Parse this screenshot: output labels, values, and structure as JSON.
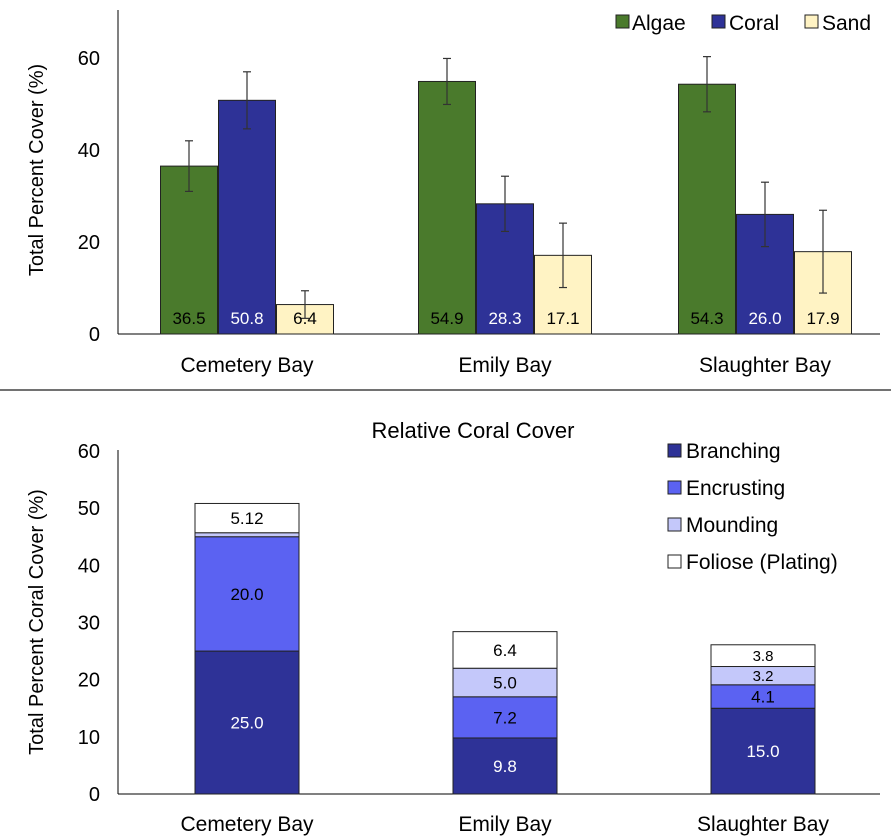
{
  "colors": {
    "algae": "#4a7a2c",
    "coral": "#2e3297",
    "sand": "#fff3c4",
    "branching": "#2e3297",
    "encrusting": "#5b62f2",
    "mounding": "#c4c8fa",
    "foliose": "#ffffff"
  },
  "chart_data": [
    {
      "type": "bar",
      "title": "",
      "xlabel": "",
      "ylabel": "Total Percent Cover  (%)",
      "ylim": [
        0,
        65
      ],
      "yticks": [
        0,
        20,
        40,
        60
      ],
      "categories": [
        "Cemetery Bay",
        "Emily Bay",
        "Slaughter Bay"
      ],
      "legend_position": "top-right",
      "series": [
        {
          "name": "Algae",
          "color_key": "algae",
          "values": [
            36.5,
            54.9,
            54.3
          ],
          "labels": [
            "36.5",
            "54.9",
            "54.3"
          ],
          "error": [
            5.5,
            5.0,
            6.0
          ]
        },
        {
          "name": "Coral",
          "color_key": "coral",
          "values": [
            50.8,
            28.3,
            26.0
          ],
          "labels": [
            "50.8",
            "28.3",
            "26.0"
          ],
          "error": [
            6.2,
            6.0,
            7.0
          ]
        },
        {
          "name": "Sand",
          "color_key": "sand",
          "values": [
            6.4,
            17.1,
            17.9
          ],
          "labels": [
            "6.4",
            "17.1",
            "17.9"
          ],
          "error": [
            3.0,
            7.0,
            9.0
          ]
        }
      ]
    },
    {
      "type": "stacked-bar",
      "title": "Relative Coral Cover",
      "xlabel": "",
      "ylabel": "Total Percent Coral Cover  (%)",
      "ylim": [
        0,
        60
      ],
      "yticks": [
        0,
        10,
        20,
        30,
        40,
        50,
        60
      ],
      "categories": [
        "Cemetery Bay",
        "Emily Bay",
        "Slaughter Bay"
      ],
      "legend_position": "top-right",
      "series": [
        {
          "name": "Branching",
          "color_key": "branching",
          "values": [
            25.0,
            9.8,
            15.0
          ],
          "labels": [
            "25.0",
            "9.8",
            "15.0"
          ]
        },
        {
          "name": "Encrusting",
          "color_key": "encrusting",
          "values": [
            20.0,
            7.2,
            4.1
          ],
          "labels": [
            "20.0",
            "7.2",
            "4.1"
          ]
        },
        {
          "name": "Mounding",
          "color_key": "mounding",
          "values": [
            0.7,
            5.0,
            3.2
          ],
          "labels": [
            "",
            "5.0",
            "3.2"
          ]
        },
        {
          "name": "Foliose (Plating)",
          "color_key": "foliose",
          "values": [
            5.12,
            6.4,
            3.8
          ],
          "labels": [
            "5.12",
            "6.4",
            "3.8"
          ]
        }
      ]
    }
  ]
}
